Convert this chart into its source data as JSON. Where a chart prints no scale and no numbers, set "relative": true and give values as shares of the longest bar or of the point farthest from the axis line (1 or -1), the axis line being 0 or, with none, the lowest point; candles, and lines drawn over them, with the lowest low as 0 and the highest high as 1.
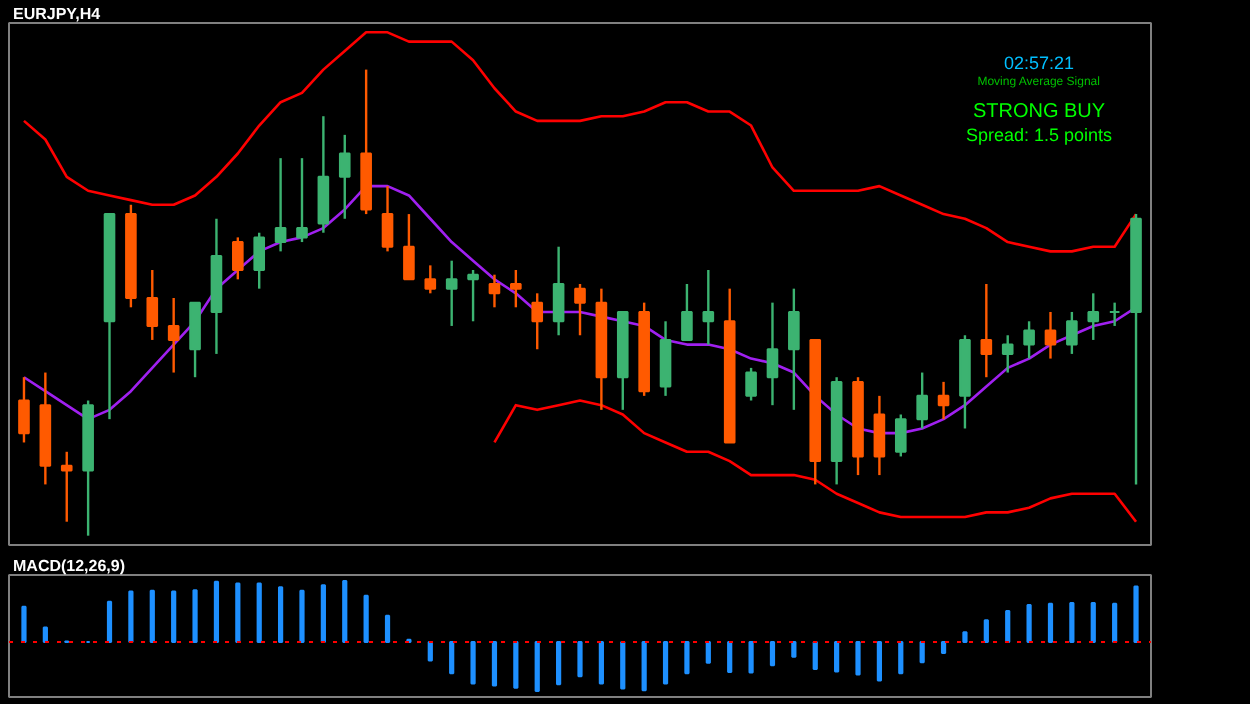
{
  "chart_data": [
    {
      "type": "candlestick",
      "title": "EURJPY,H4",
      "relative": true,
      "grid": false,
      "categories": [
        null,
        null,
        null,
        null,
        null,
        null,
        null,
        null,
        null,
        null,
        null,
        null,
        null,
        null,
        null,
        null,
        null,
        null,
        null,
        null,
        null,
        null,
        null,
        null,
        null,
        null,
        null,
        null,
        null,
        null,
        null,
        null,
        null,
        null,
        null,
        null,
        null,
        null,
        null,
        null,
        null,
        null,
        null,
        null,
        null,
        null,
        null,
        null,
        null,
        null,
        null,
        null,
        null
      ],
      "ohlc": [
        [
          0.29,
          0.34,
          0.2,
          0.22
        ],
        [
          0.28,
          0.35,
          0.11,
          0.15
        ],
        [
          0.15,
          0.18,
          0.03,
          0.14
        ],
        [
          0.14,
          0.29,
          0.0,
          0.28
        ],
        [
          0.46,
          0.69,
          0.25,
          0.69
        ],
        [
          0.69,
          0.71,
          0.49,
          0.51
        ],
        [
          0.51,
          0.57,
          0.42,
          0.45
        ],
        [
          0.45,
          0.51,
          0.35,
          0.42
        ],
        [
          0.4,
          0.5,
          0.34,
          0.5
        ],
        [
          0.48,
          0.68,
          0.39,
          0.6
        ],
        [
          0.63,
          0.64,
          0.55,
          0.57
        ],
        [
          0.57,
          0.65,
          0.53,
          0.64
        ],
        [
          0.63,
          0.81,
          0.61,
          0.66
        ],
        [
          0.64,
          0.81,
          0.63,
          0.66
        ],
        [
          0.67,
          0.9,
          0.65,
          0.77
        ],
        [
          0.77,
          0.86,
          0.68,
          0.82
        ],
        [
          0.82,
          1.0,
          0.69,
          0.7
        ],
        [
          0.69,
          0.75,
          0.61,
          0.62
        ],
        [
          0.62,
          0.69,
          0.55,
          0.55
        ],
        [
          0.55,
          0.58,
          0.52,
          0.53
        ],
        [
          0.53,
          0.59,
          0.45,
          0.55
        ],
        [
          0.55,
          0.57,
          0.46,
          0.56
        ],
        [
          0.54,
          0.56,
          0.49,
          0.52
        ],
        [
          0.54,
          0.57,
          0.49,
          0.53
        ],
        [
          0.5,
          0.52,
          0.4,
          0.46
        ],
        [
          0.46,
          0.62,
          0.43,
          0.54
        ],
        [
          0.53,
          0.54,
          0.43,
          0.5
        ],
        [
          0.5,
          0.53,
          0.27,
          0.34
        ],
        [
          0.34,
          0.48,
          0.27,
          0.48
        ],
        [
          0.48,
          0.5,
          0.3,
          0.31
        ],
        [
          0.32,
          0.46,
          0.3,
          0.42
        ],
        [
          0.42,
          0.54,
          0.42,
          0.48
        ],
        [
          0.46,
          0.57,
          0.41,
          0.48
        ],
        [
          0.46,
          0.53,
          0.2,
          0.2
        ],
        [
          0.3,
          0.36,
          0.29,
          0.35
        ],
        [
          0.34,
          0.5,
          0.28,
          0.4
        ],
        [
          0.4,
          0.53,
          0.27,
          0.48
        ],
        [
          0.42,
          0.42,
          0.11,
          0.16
        ],
        [
          0.16,
          0.34,
          0.11,
          0.33
        ],
        [
          0.33,
          0.34,
          0.13,
          0.17
        ],
        [
          0.26,
          0.3,
          0.13,
          0.17
        ],
        [
          0.18,
          0.26,
          0.17,
          0.25
        ],
        [
          0.25,
          0.35,
          0.23,
          0.3
        ],
        [
          0.3,
          0.33,
          0.25,
          0.28
        ],
        [
          0.3,
          0.43,
          0.23,
          0.42
        ],
        [
          0.42,
          0.54,
          0.34,
          0.39
        ],
        [
          0.39,
          0.43,
          0.35,
          0.41
        ],
        [
          0.41,
          0.46,
          0.38,
          0.44
        ],
        [
          0.44,
          0.48,
          0.38,
          0.41
        ],
        [
          0.41,
          0.48,
          0.39,
          0.46
        ],
        [
          0.46,
          0.52,
          0.42,
          0.48
        ],
        [
          0.48,
          0.5,
          0.45,
          0.48
        ],
        [
          0.48,
          0.69,
          0.11,
          0.68
        ]
      ],
      "colors": [
        "#ff5a00",
        "#ff5a00",
        "#ff5a00",
        "#3cb371",
        "#3cb371",
        "#ff5a00",
        "#ff5a00",
        "#ff5a00",
        "#3cb371",
        "#3cb371",
        "#ff5a00",
        "#3cb371",
        "#3cb371",
        "#3cb371",
        "#3cb371",
        "#3cb371",
        "#ff5a00",
        "#ff5a00",
        "#ff5a00",
        "#ff5a00",
        "#3cb371",
        "#3cb371",
        "#ff5a00",
        "#ff5a00",
        "#ff5a00",
        "#3cb371",
        "#ff5a00",
        "#ff5a00",
        "#3cb371",
        "#ff5a00",
        "#3cb371",
        "#3cb371",
        "#3cb371",
        "#ff5a00",
        "#3cb371",
        "#3cb371",
        "#3cb371",
        "#ff5a00",
        "#3cb371",
        "#ff5a00",
        "#ff5a00",
        "#3cb371",
        "#3cb371",
        "#ff5a00",
        "#3cb371",
        "#ff5a00",
        "#3cb371",
        "#3cb371",
        "#ff5a00",
        "#3cb371",
        "#3cb371",
        "#3cb371",
        "#3cb371"
      ],
      "series": [
        {
          "type": "line",
          "color": "#ff0000",
          "values": [
            0.89,
            0.85,
            0.77,
            0.74,
            0.73,
            0.72,
            0.71,
            0.71,
            0.73,
            0.77,
            0.82,
            0.88,
            0.93,
            0.95,
            1.0,
            1.04,
            1.08,
            1.08,
            1.06,
            1.06,
            1.06,
            1.02,
            0.96,
            0.91,
            0.89,
            0.89,
            0.89,
            0.9,
            0.9,
            0.91,
            0.93,
            0.93,
            0.91,
            0.91,
            0.88,
            0.79,
            0.74,
            0.74,
            0.74,
            0.74,
            0.75,
            0.73,
            0.71,
            0.69,
            0.68,
            0.66,
            0.63,
            0.62,
            0.61,
            0.61,
            0.62,
            0.62,
            0.69
          ]
        },
        {
          "type": "line",
          "color": "#ff0000",
          "values": [
            null,
            null,
            null,
            null,
            null,
            null,
            null,
            null,
            null,
            null,
            null,
            null,
            null,
            null,
            null,
            null,
            null,
            null,
            null,
            null,
            null,
            null,
            0.2,
            0.28,
            0.27,
            0.28,
            0.29,
            0.28,
            0.26,
            0.22,
            0.2,
            0.18,
            0.18,
            0.16,
            0.13,
            0.13,
            0.13,
            0.12,
            0.09,
            0.07,
            0.05,
            0.04,
            0.04,
            0.04,
            0.04,
            0.05,
            0.05,
            0.06,
            0.08,
            0.09,
            0.09,
            0.09,
            0.03
          ]
        },
        {
          "type": "line",
          "color": "#a020f0",
          "values": [
            0.34,
            0.31,
            0.28,
            0.25,
            0.27,
            0.31,
            0.36,
            0.41,
            0.46,
            0.53,
            0.57,
            0.61,
            0.63,
            0.64,
            0.66,
            0.7,
            0.75,
            0.75,
            0.73,
            0.68,
            0.63,
            0.59,
            0.55,
            0.52,
            0.48,
            0.48,
            0.48,
            0.47,
            0.46,
            0.45,
            0.42,
            0.41,
            0.41,
            0.4,
            0.38,
            0.37,
            0.35,
            0.3,
            0.26,
            0.23,
            0.22,
            0.22,
            0.23,
            0.25,
            0.28,
            0.32,
            0.36,
            0.38,
            0.41,
            0.43,
            0.45,
            0.46,
            0.49
          ]
        }
      ],
      "annotations": [
        "02:57:21",
        "Moving Average Signal",
        "STRONG BUY",
        "Spread: 1.5 points"
      ]
    },
    {
      "type": "bar",
      "title": "MACD(12,26,9)",
      "relative": true,
      "grid": false,
      "color": "#1e90ff",
      "categories": [
        null,
        null,
        null,
        null,
        null,
        null,
        null,
        null,
        null,
        null,
        null,
        null,
        null,
        null,
        null,
        null,
        null,
        null,
        null,
        null,
        null,
        null,
        null,
        null,
        null,
        null,
        null,
        null,
        null,
        null,
        null,
        null,
        null,
        null,
        null,
        null,
        null,
        null,
        null,
        null,
        null,
        null,
        null,
        null,
        null,
        null,
        null,
        null,
        null,
        null,
        null,
        null,
        null
      ],
      "values": [
        0.58,
        0.24,
        0.01,
        0,
        0.66,
        0.83,
        0.84,
        0.83,
        0.85,
        0.99,
        0.96,
        0.96,
        0.9,
        0.84,
        0.93,
        1,
        0.76,
        0.43,
        0.04,
        -0.3,
        -0.51,
        -0.68,
        -0.71,
        -0.75,
        -0.8,
        -0.69,
        -0.56,
        -0.68,
        -0.76,
        -0.79,
        -0.68,
        -0.51,
        -0.34,
        -0.49,
        -0.5,
        -0.38,
        -0.24,
        -0.44,
        -0.48,
        -0.53,
        -0.63,
        -0.51,
        -0.33,
        -0.18,
        0.16,
        0.36,
        0.51,
        0.61,
        0.63,
        0.64,
        0.64,
        0.63,
        0.91
      ],
      "ref_lines": [
        {
          "axis": "y",
          "value": 0,
          "color": "#ff0000",
          "line_style": "dotted"
        }
      ]
    }
  ]
}
